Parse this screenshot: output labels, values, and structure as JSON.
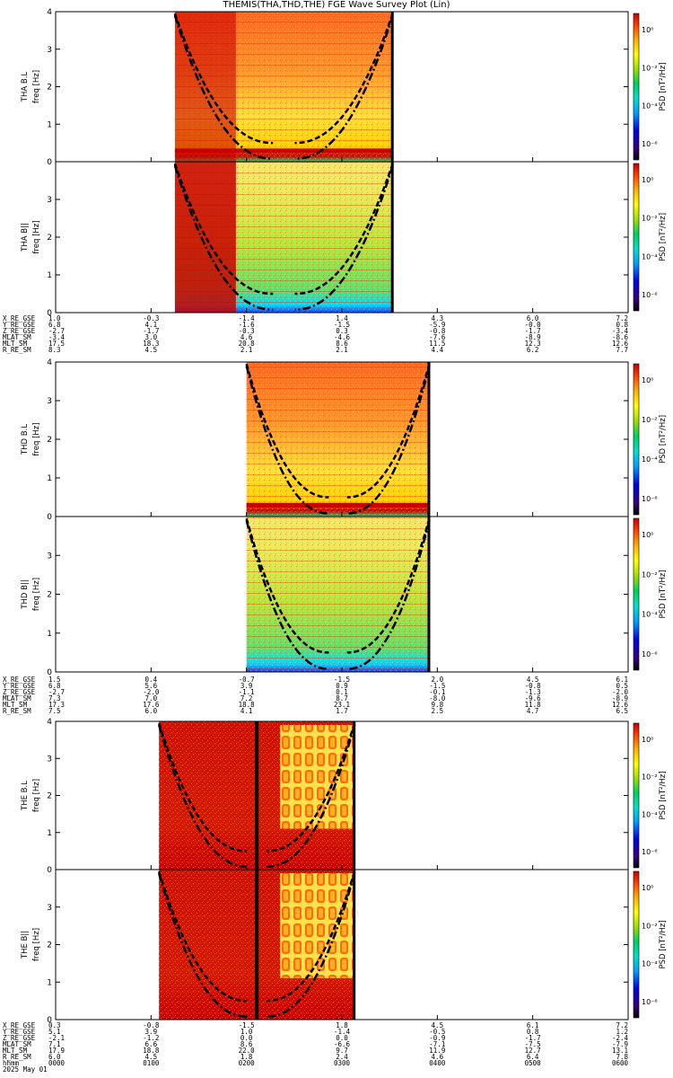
{
  "title": "THEMIS(THA,THD,THE) FGE Wave Survey Plot (Lin)",
  "colors": {
    "background": "#ffffff",
    "axis": "#000000",
    "colormap": [
      "#000000",
      "#3a007a",
      "#0000e6",
      "#00a0ff",
      "#00e0d0",
      "#00d060",
      "#9be000",
      "#ffff00",
      "#ffb000",
      "#ff4000",
      "#c80000"
    ]
  },
  "chart_data": [
    {
      "probe": "THA",
      "panel": "THA B.L",
      "type": "heatmap",
      "ylabel": "freq [Hz]",
      "ylim": [
        0,
        4
      ],
      "yticks": [
        "0",
        "1",
        "2",
        "3",
        "4"
      ],
      "colorbar_label": "PSD [nT²/Hz]",
      "colorbar_ticks": [
        "10⁰",
        "10⁻²",
        "10⁻⁴",
        "10⁻⁶"
      ],
      "colorbar_scale": "log",
      "data_start": "0115",
      "data_end": "0332",
      "dominant_level": "high"
    },
    {
      "probe": "THA",
      "panel": "THA B||",
      "type": "heatmap",
      "ylabel": "freq [Hz]",
      "ylim": [
        0,
        4
      ],
      "yticks": [
        "0",
        "1",
        "2",
        "3"
      ],
      "colorbar_label": "PSD [nT²/Hz]",
      "colorbar_ticks": [
        "10⁰",
        "10⁻²",
        "10⁻⁴",
        "10⁻⁶"
      ],
      "colorbar_scale": "log",
      "data_start": "0115",
      "data_end": "0332",
      "dominant_level": "mid"
    },
    {
      "probe": "THD",
      "panel": "THD B.L",
      "type": "heatmap",
      "ylabel": "freq [Hz]",
      "ylim": [
        0,
        4
      ],
      "yticks": [
        "0",
        "1",
        "2",
        "3",
        "4"
      ],
      "colorbar_label": "PSD [nT²/Hz]",
      "colorbar_ticks": [
        "10⁰",
        "10⁻²",
        "10⁻⁴",
        "10⁻⁶"
      ],
      "colorbar_scale": "log",
      "data_start": "0200",
      "data_end": "0355",
      "dominant_level": "high"
    },
    {
      "probe": "THD",
      "panel": "THD B||",
      "type": "heatmap",
      "ylabel": "freq [Hz]",
      "ylim": [
        0,
        4
      ],
      "yticks": [
        "0",
        "1",
        "2",
        "3"
      ],
      "colorbar_label": "PSD [nT²/Hz]",
      "colorbar_ticks": [
        "10⁰",
        "10⁻²",
        "10⁻⁴",
        "10⁻⁶"
      ],
      "colorbar_scale": "log",
      "data_start": "0200",
      "data_end": "0355",
      "dominant_level": "mid"
    },
    {
      "probe": "THE",
      "panel": "THE B.L",
      "type": "heatmap",
      "ylabel": "freq [Hz]",
      "ylim": [
        0,
        4
      ],
      "yticks": [
        "0",
        "1",
        "2",
        "3",
        "4"
      ],
      "colorbar_label": "PSD [nT²/Hz]",
      "colorbar_ticks": [
        "10⁰",
        "10⁻²",
        "10⁻⁴",
        "10⁻⁶"
      ],
      "colorbar_scale": "log",
      "data_start": "0105",
      "data_end": "0308",
      "dominant_level": "saturated"
    },
    {
      "probe": "THE",
      "panel": "THE B||",
      "type": "heatmap",
      "ylabel": "freq [Hz]",
      "ylim": [
        0,
        4
      ],
      "yticks": [
        "0",
        "1",
        "2",
        "3"
      ],
      "colorbar_label": "PSD [nT²/Hz]",
      "colorbar_ticks": [
        "10⁰",
        "10⁻²",
        "10⁻⁴",
        "10⁻⁶"
      ],
      "colorbar_scale": "log",
      "data_start": "0105",
      "data_end": "0308",
      "dominant_level": "saturated"
    }
  ],
  "ephemeris": [
    {
      "probe": "THA",
      "rows": [
        {
          "label": "X_RE_GSE",
          "values": [
            "1.0",
            "-0.3",
            "-1.4",
            "1.4",
            "4.3",
            "6.0",
            "7.2"
          ]
        },
        {
          "label": "Y_RE_GSE",
          "values": [
            "6.8",
            "4.1",
            "-1.6",
            "-1.5",
            "-5.9",
            "-0.0",
            "0.8"
          ]
        },
        {
          "label": "Z_RE_GSE",
          "values": [
            "-2.7",
            "-1.7",
            "-0.3",
            "0.3",
            "-0.8",
            "-1.7",
            "-3.4"
          ]
        },
        {
          "label": "MLAT_SM",
          "values": [
            "-3.4",
            "3.0",
            "4.6",
            "-4.6",
            "-7.6",
            "-8.9",
            "-8.6"
          ]
        },
        {
          "label": "MLT_SM",
          "values": [
            "17.5",
            "18.3",
            "20.8",
            "8.6",
            "11.5",
            "12.3",
            "12.6"
          ]
        },
        {
          "label": "R_RE_SM",
          "values": [
            "8.3",
            "4.5",
            "2.1",
            "2.1",
            "4.4",
            "6.2",
            "7.7"
          ]
        }
      ]
    },
    {
      "probe": "THD",
      "rows": [
        {
          "label": "X_RE_GSE",
          "values": [
            "1.5",
            "0.4",
            "-0.7",
            "-1.5",
            "2.0",
            "4.5",
            "6.1"
          ]
        },
        {
          "label": "Y_RE_GSE",
          "values": [
            "6.8",
            "5.6",
            "3.9",
            "0.9",
            "-1.5",
            "-0.8",
            "0.5"
          ]
        },
        {
          "label": "Z_RE_GSE",
          "values": [
            "-2.7",
            "-2.0",
            "-1.1",
            "0.1",
            "-0.1",
            "-1.3",
            "-2.0"
          ]
        },
        {
          "label": "MLAT_SM",
          "values": [
            "7.3",
            "7.0",
            "7.2",
            "8.7",
            "-8.0",
            "-9.6",
            "-8.9"
          ]
        },
        {
          "label": "MLT_SM",
          "values": [
            "17.3",
            "17.6",
            "18.8",
            "23.1",
            "9.8",
            "11.8",
            "12.6"
          ]
        },
        {
          "label": "R_RE_SM",
          "values": [
            "7.5",
            "6.0",
            "4.1",
            "1.7",
            "2.5",
            "4.7",
            "6.5"
          ]
        }
      ]
    },
    {
      "probe": "THE",
      "rows": [
        {
          "label": "X_RE_GSE",
          "values": [
            "0.3",
            "-0.8",
            "-1.5",
            "1.8",
            "4.5",
            "6.1",
            "7.2"
          ]
        },
        {
          "label": "Y_RE_GSE",
          "values": [
            "5.1",
            "3.9",
            "1.0",
            "-1.4",
            "-0.5",
            "0.8",
            "1.2"
          ]
        },
        {
          "label": "Z_RE_GSE",
          "values": [
            "-2.1",
            "-1.2",
            "0.0",
            "0.0",
            "-0.9",
            "-1.7",
            "-2.4"
          ]
        },
        {
          "label": "MLAT_SM",
          "values": [
            "7.1",
            "6.6",
            "8.6",
            "-6.6",
            "-7.1",
            "-7.5",
            "-7.9"
          ]
        },
        {
          "label": "MLT_SM",
          "values": [
            "17.9",
            "18.8",
            "22.0",
            "9.7",
            "11.9",
            "12.7",
            "13.1"
          ]
        },
        {
          "label": "R_RE_SM",
          "values": [
            "6.0",
            "4.5",
            "1.8",
            "2.4",
            "4.6",
            "6.4",
            "7.8"
          ]
        }
      ]
    }
  ],
  "time_axis": {
    "label": "hhmm",
    "ticks": [
      "0000",
      "0100",
      "0200",
      "0300",
      "0400",
      "0500",
      "0600"
    ],
    "date": "2025 May 01"
  }
}
